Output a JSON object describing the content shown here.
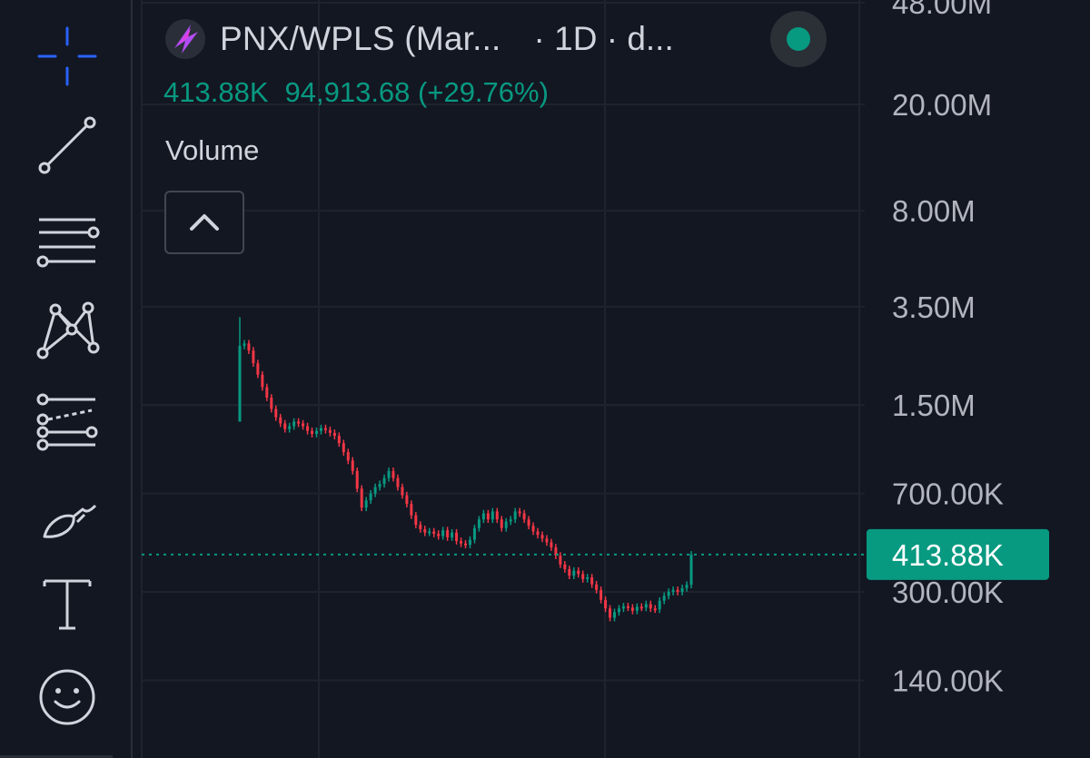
{
  "toolbar": {
    "items": [
      {
        "name": "crosshair-tool",
        "icon": "crosshair-icon"
      },
      {
        "name": "trend-line-tool",
        "icon": "trend-line-icon"
      },
      {
        "name": "horizontal-lines-tool",
        "icon": "horizontal-lines-icon"
      },
      {
        "name": "pattern-tool",
        "icon": "xabcd-pattern-icon"
      },
      {
        "name": "forecast-tool",
        "icon": "projection-icon"
      },
      {
        "name": "brush-tool",
        "icon": "brush-icon"
      },
      {
        "name": "text-tool",
        "icon": "text-icon"
      },
      {
        "name": "emoji-tool",
        "icon": "smiley-icon"
      }
    ],
    "active_color": "#2962ff"
  },
  "legend": {
    "symbol": "PNX/WPLS (Mar...",
    "interval": "· 1D · d...",
    "status_color": "#089981"
  },
  "ohlc": {
    "volume": "413.88K",
    "change": "94,913.68 (+29.76%)"
  },
  "indicator": {
    "label": "Volume"
  },
  "chart_data": {
    "type": "candlestick",
    "y_scale": "log",
    "y_ticks": [
      "48.00M",
      "20.00M",
      "8.00M",
      "3.50M",
      "1.50M",
      "700.00K",
      "300.00K",
      "140.00K"
    ],
    "y_tick_values": [
      48000000,
      20000000,
      8000000,
      3500000,
      1500000,
      700000,
      300000,
      140000
    ],
    "last_price": 413880,
    "last_price_label": "413.88K",
    "up_color": "#089981",
    "down_color": "#f23645",
    "closes": [
      2500000,
      2550000,
      2400000,
      2150000,
      1950000,
      1750000,
      1600000,
      1450000,
      1350000,
      1280000,
      1220000,
      1250000,
      1300000,
      1280000,
      1250000,
      1200000,
      1170000,
      1200000,
      1230000,
      1210000,
      1180000,
      1150000,
      1080000,
      1000000,
      930000,
      850000,
      730000,
      620000,
      660000,
      700000,
      740000,
      760000,
      800000,
      850000,
      800000,
      740000,
      690000,
      640000,
      580000,
      535000,
      515000,
      500000,
      505000,
      495000,
      485000,
      510000,
      480000,
      500000,
      465000,
      455000,
      450000,
      470000,
      520000,
      560000,
      590000,
      560000,
      600000,
      560000,
      520000,
      550000,
      560000,
      600000,
      590000,
      560000,
      530000,
      505000,
      490000,
      475000,
      460000,
      440000,
      410000,
      380000,
      365000,
      345000,
      360000,
      350000,
      335000,
      340000,
      320000,
      305000,
      280000,
      260000,
      240000,
      252000,
      260000,
      265000,
      262000,
      255000,
      264000,
      262000,
      270000,
      260000,
      258000,
      278000,
      290000,
      300000,
      305000,
      300000,
      310000,
      318900,
      413880
    ]
  }
}
